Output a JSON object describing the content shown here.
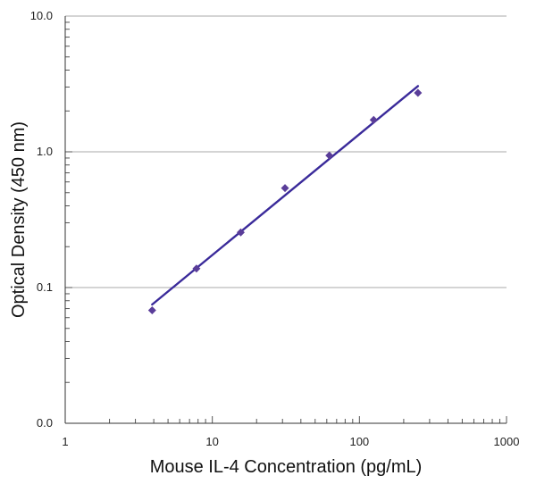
{
  "chart_data": {
    "type": "scatter",
    "title": "",
    "xlabel": "Mouse IL-4 Concentration (pg/mL)",
    "ylabel": "Optical Density (450 nm)",
    "xscale": "log",
    "yscale": "log",
    "xlim": [
      1,
      1000
    ],
    "ylim": [
      0.01,
      10
    ],
    "x_ticks": [
      {
        "value": 1,
        "label": "1"
      },
      {
        "value": 10,
        "label": "10"
      },
      {
        "value": 100,
        "label": "100"
      },
      {
        "value": 1000,
        "label": "1000"
      }
    ],
    "y_ticks": [
      {
        "value": 0.01,
        "label": "0.0"
      },
      {
        "value": 0.1,
        "label": "0.1"
      },
      {
        "value": 1,
        "label": "1.0"
      },
      {
        "value": 10,
        "label": "10.0"
      }
    ],
    "grid": "horizontal",
    "legend": "none",
    "series": [
      {
        "x": [
          3.9,
          7.8,
          15.6,
          31.2,
          62.5,
          125,
          250
        ],
        "y": [
          0.068,
          0.138,
          0.255,
          0.54,
          0.94,
          1.72,
          2.72
        ],
        "marker": "diamond",
        "color": "#5a3d99"
      }
    ],
    "fit_line": {
      "x": [
        3.9,
        250
      ],
      "y": [
        0.075,
        3.05
      ],
      "color": "#3a2a9a"
    }
  }
}
